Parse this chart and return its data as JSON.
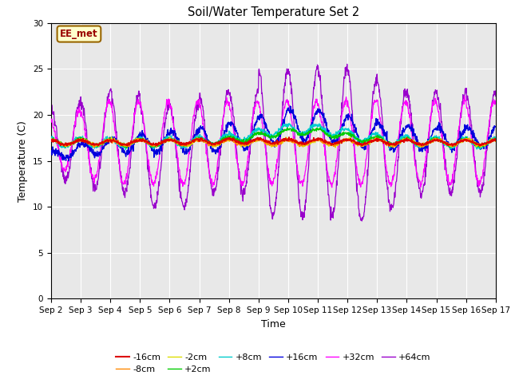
{
  "title": "Soil/Water Temperature Set 2",
  "xlabel": "Time",
  "ylabel": "Temperature (C)",
  "xlim": [
    0,
    15
  ],
  "ylim": [
    0,
    30
  ],
  "yticks": [
    0,
    5,
    10,
    15,
    20,
    25,
    30
  ],
  "xtick_labels": [
    "Sep 2",
    "Sep 3",
    "Sep 4",
    "Sep 5",
    "Sep 6",
    "Sep 7",
    "Sep 8",
    "Sep 9",
    "Sep 10",
    "Sep 11",
    "Sep 12",
    "Sep 13",
    "Sep 14",
    "Sep 15",
    "Sep 16",
    "Sep 17"
  ],
  "annotation_text": "EE_met",
  "annotation_box_color": "#ffffcc",
  "annotation_border_color": "#996600",
  "annotation_text_color": "#990000",
  "series_colors": {
    "-16cm": "#dd0000",
    "-8cm": "#ff8800",
    "-2cm": "#dddd00",
    "+2cm": "#00cc00",
    "+8cm": "#00cccc",
    "+16cm": "#0000dd",
    "+32cm": "#ff00ff",
    "+64cm": "#9900cc"
  },
  "background_color": "#e8e8e8",
  "fig_background": "#ffffff",
  "legend_ncol_row1": 6,
  "legend_row1": [
    "-16cm",
    "-8cm",
    "-2cm",
    "+2cm",
    "+8cm",
    "+16cm"
  ],
  "legend_row2": [
    "+32cm",
    "+64cm"
  ]
}
